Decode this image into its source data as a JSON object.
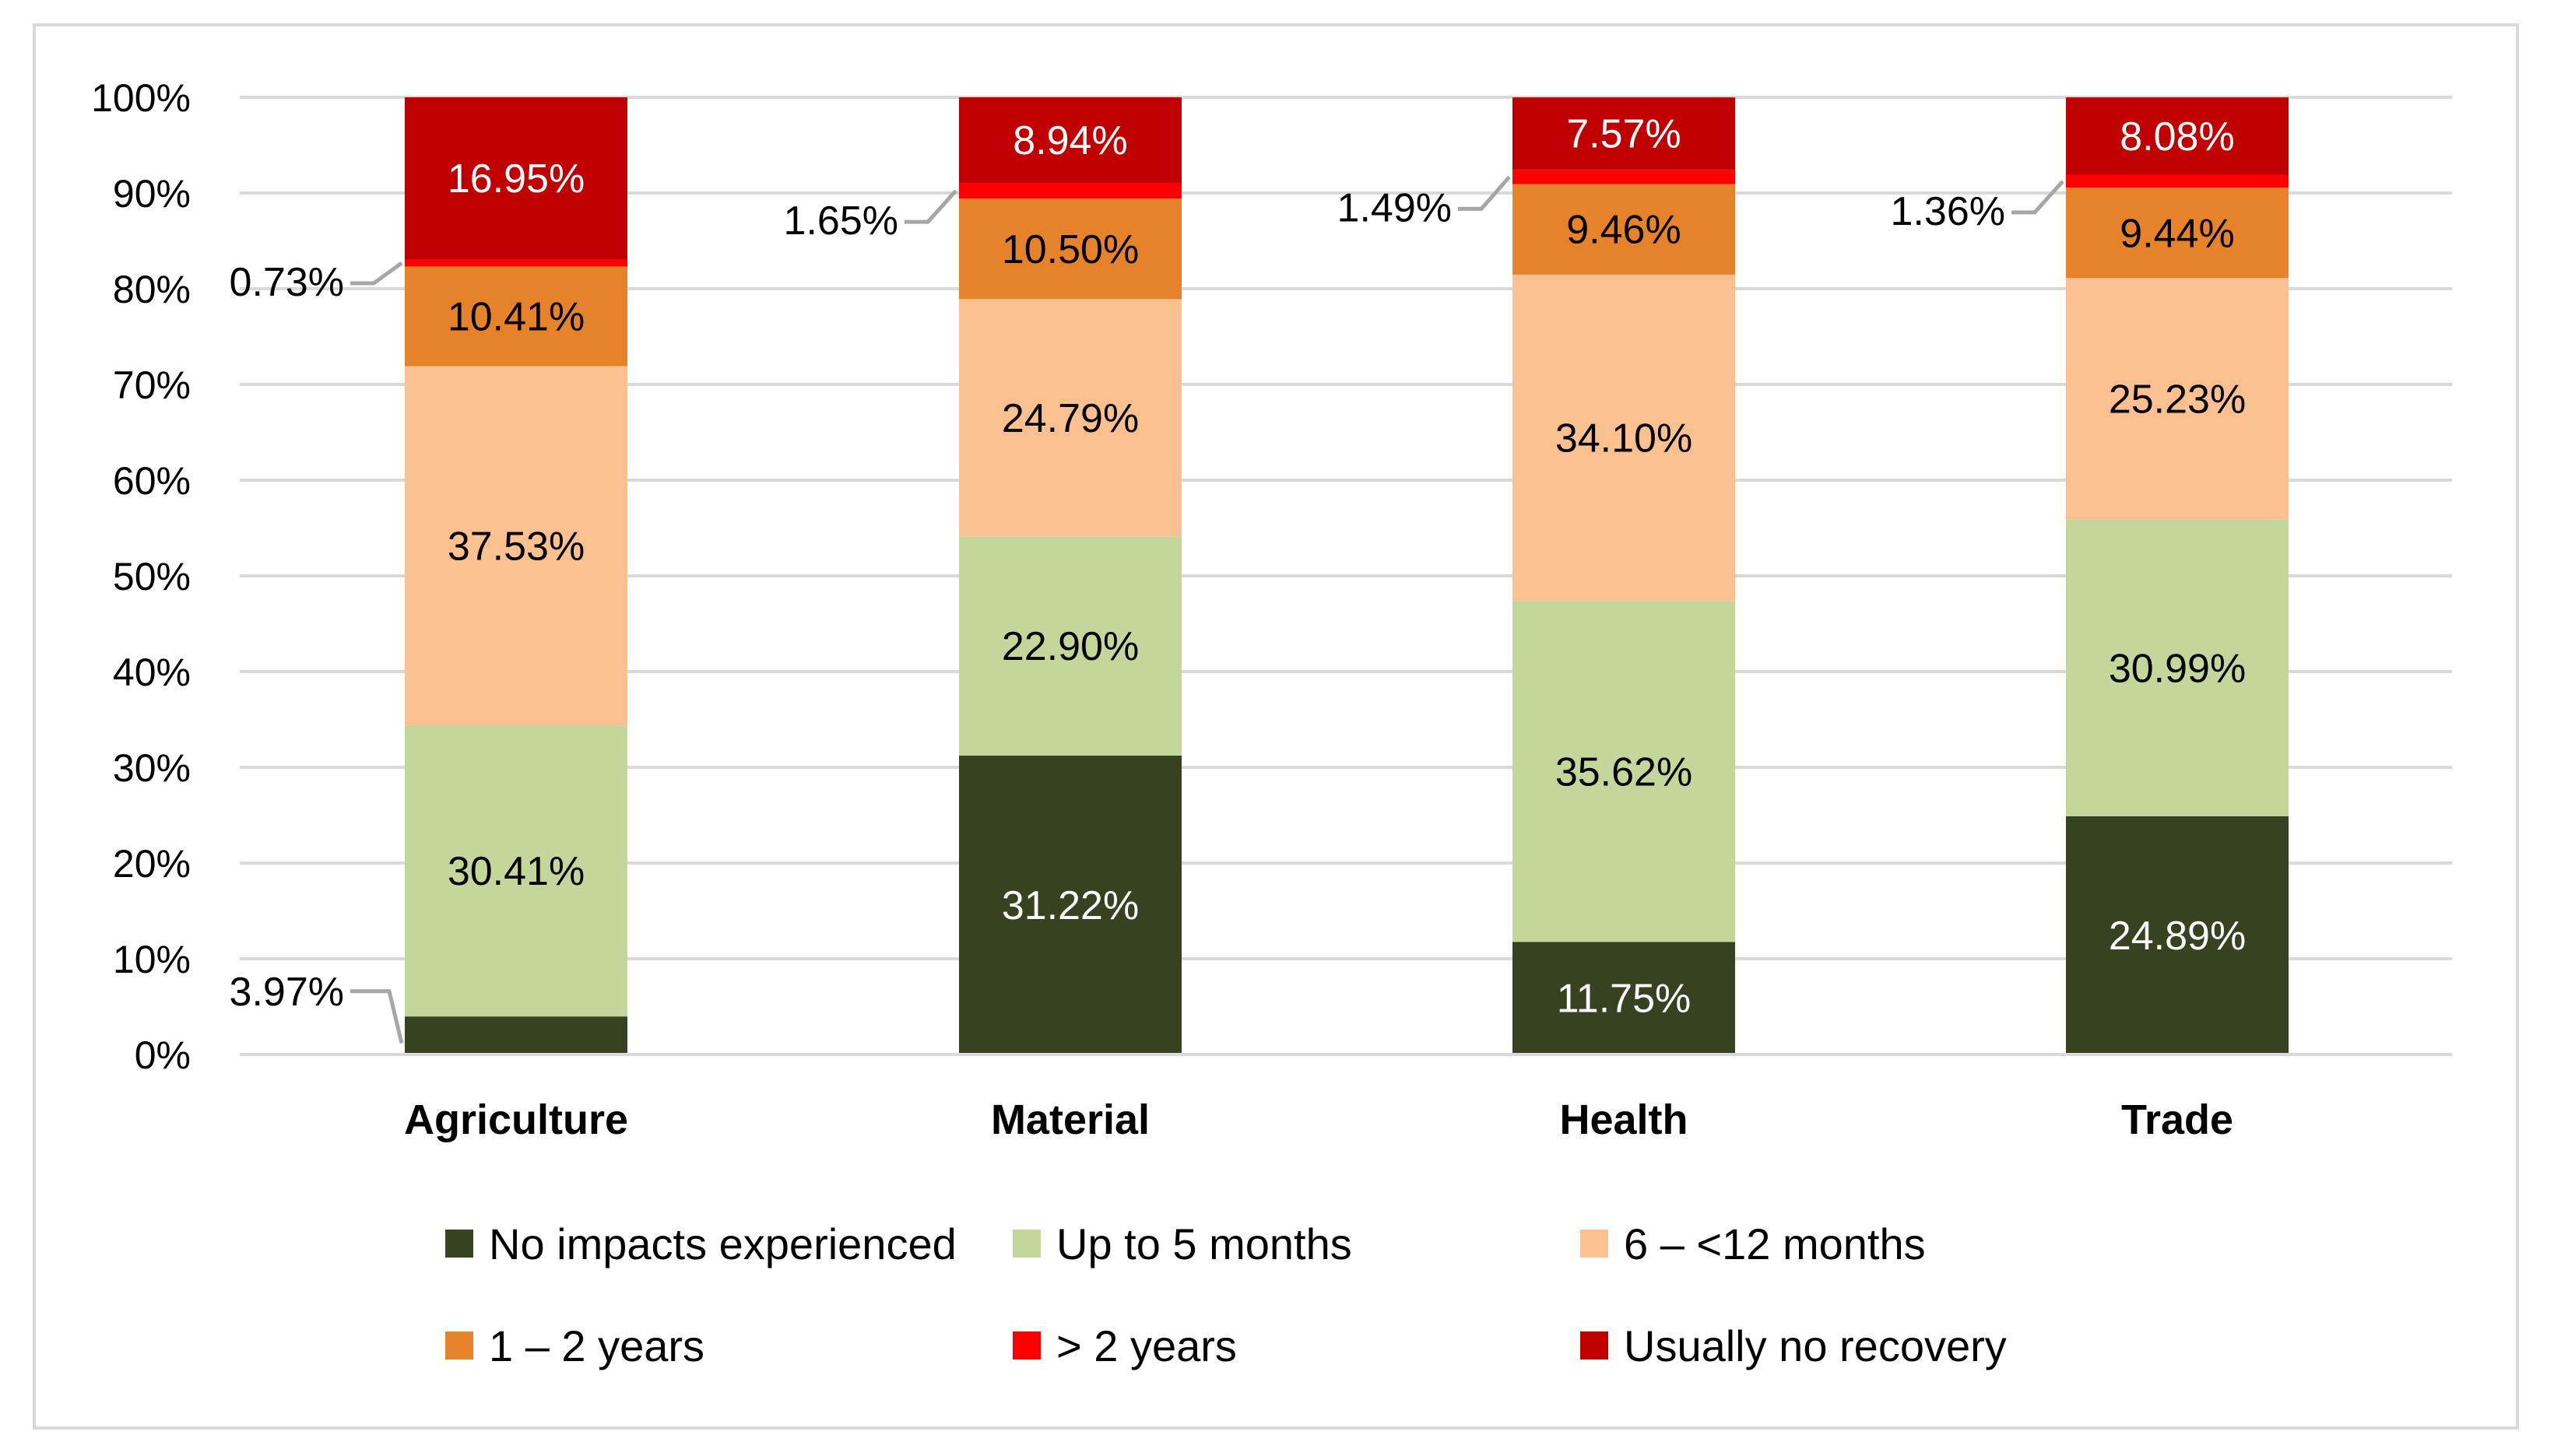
{
  "chart_data": {
    "type": "bar",
    "stacked": true,
    "categories": [
      "Agriculture",
      "Material",
      "Health",
      "Trade"
    ],
    "y_ticks": [
      "0%",
      "10%",
      "20%",
      "30%",
      "40%",
      "50%",
      "60%",
      "70%",
      "80%",
      "90%",
      "100%"
    ],
    "ylim": [
      0,
      100
    ],
    "grid": true,
    "legend_position": "bottom",
    "series": [
      {
        "name": "No impacts experienced",
        "color": "#374220",
        "values": [
          3.97,
          31.22,
          11.75,
          24.89
        ],
        "labels": [
          "3.97%",
          "31.22%",
          "11.75%",
          "24.89%"
        ]
      },
      {
        "name": "Up to 5 months",
        "color": "#c4d79b",
        "values": [
          30.41,
          22.9,
          35.62,
          30.99
        ],
        "labels": [
          "30.41%",
          "22.90%",
          "35.62%",
          "30.99%"
        ]
      },
      {
        "name": "6 – <12 months",
        "color": "#fac090",
        "values": [
          37.53,
          24.79,
          34.1,
          25.23
        ],
        "labels": [
          "37.53%",
          "24.79%",
          "34.10%",
          "25.23%"
        ]
      },
      {
        "name": "1 – 2 years",
        "color": "#e6822a",
        "values": [
          10.41,
          10.5,
          9.46,
          9.44
        ],
        "labels": [
          "10.41%",
          "10.50%",
          "9.46%",
          "9.44%"
        ]
      },
      {
        "name": "> 2 years",
        "color": "#ff0000",
        "values": [
          0.73,
          1.65,
          1.49,
          1.36
        ],
        "labels": [
          "0.73%",
          "1.65%",
          "1.49%",
          "1.36%"
        ]
      },
      {
        "name": "Usually no recovery",
        "color": "#c00000",
        "values": [
          16.95,
          8.94,
          7.57,
          8.08
        ],
        "labels": [
          "16.95%",
          "8.94%",
          "7.57%",
          "8.08%"
        ]
      }
    ]
  }
}
